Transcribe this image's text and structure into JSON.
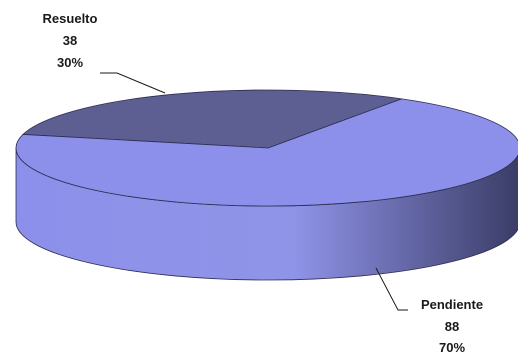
{
  "chart_data": {
    "type": "pie",
    "style": "3d",
    "slices": [
      {
        "label": "Resuelto",
        "value": 38,
        "percent": "30%",
        "color": "#5d5f93"
      },
      {
        "label": "Pendiente",
        "value": 88,
        "percent": "70%",
        "color": "#8c90ea"
      }
    ],
    "colors": {
      "side_dark": "#3a3c66",
      "side_light": "#9094e8",
      "edge": "#2d2e52"
    }
  }
}
